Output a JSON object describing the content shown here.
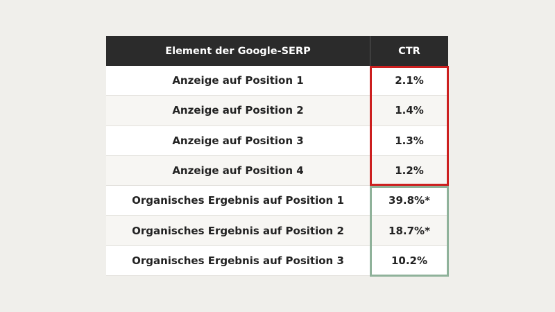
{
  "table": {
    "columns": [
      "Element der Google-SERP",
      "CTR"
    ],
    "rows": [
      [
        "Anzeige auf Position 1",
        "2.1%"
      ],
      [
        "Anzeige auf Position 2",
        "1.4%"
      ],
      [
        "Anzeige auf Position 3",
        "1.3%"
      ],
      [
        "Anzeige auf Position 4",
        "1.2%"
      ],
      [
        "Organisches Ergebnis auf Position 1",
        "39.8%*"
      ],
      [
        "Organisches Ergebnis auf Position 2",
        "18.7%*"
      ],
      [
        "Organisches Ergebnis auf Position 3",
        "10.2%"
      ]
    ]
  }
}
